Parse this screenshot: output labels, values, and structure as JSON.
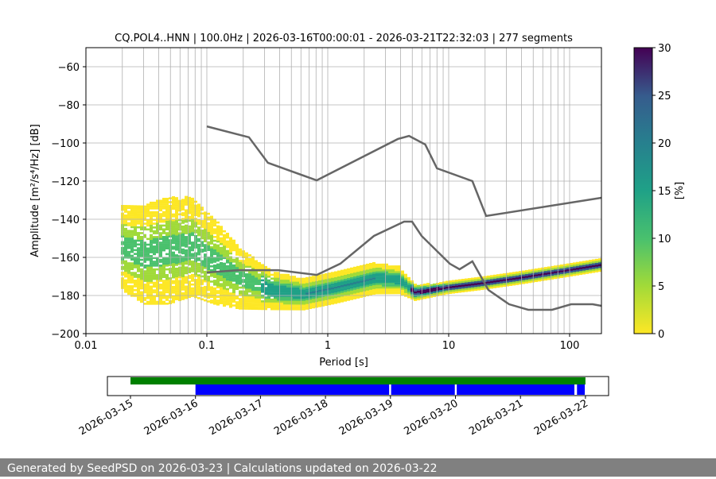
{
  "chart_data": {
    "type": "heatmap",
    "title": "CQ.POL4..HNN | 100.0Hz | 2026-03-16T00:00:01 - 2026-03-21T22:32:03 | 277 segments",
    "xlabel": "Period [s]",
    "ylabel": "Amplitude [m²/s⁴/Hz] [dB]",
    "xscale": "log",
    "xlim": [
      0.01,
      183
    ],
    "ylim": [
      -200,
      -50
    ],
    "xticks": [
      {
        "v": 0.01,
        "label": "0.01"
      },
      {
        "v": 0.1,
        "label": "0.1"
      },
      {
        "v": 1,
        "label": "1"
      },
      {
        "v": 10,
        "label": "10"
      },
      {
        "v": 100,
        "label": "100"
      }
    ],
    "yticks": [
      {
        "v": -60,
        "label": "−60"
      },
      {
        "v": -80,
        "label": "−80"
      },
      {
        "v": -100,
        "label": "−100"
      },
      {
        "v": -120,
        "label": "−120"
      },
      {
        "v": -140,
        "label": "−140"
      },
      {
        "v": -160,
        "label": "−160"
      },
      {
        "v": -180,
        "label": "−180"
      },
      {
        "v": -200,
        "label": "−200"
      }
    ],
    "grid": true,
    "colorbar": {
      "label": "[%]",
      "range": [
        0,
        30
      ],
      "ticks": [
        "0",
        "5",
        "10",
        "15",
        "20",
        "25",
        "30"
      ]
    },
    "noise_models": [
      {
        "name": "high",
        "points": [
          [
            0.1,
            -91.3
          ],
          [
            0.223,
            -97
          ],
          [
            0.32,
            -110.4
          ],
          [
            0.81,
            -119.6
          ],
          [
            3.8,
            -97.9
          ],
          [
            4.7,
            -96.3
          ],
          [
            6.4,
            -100.8
          ],
          [
            8,
            -113.3
          ],
          [
            15.7,
            -120
          ],
          [
            20.4,
            -138.3
          ],
          [
            183,
            -128.75
          ]
        ]
      },
      {
        "name": "low",
        "points": [
          [
            0.1,
            -167.9
          ],
          [
            0.183,
            -166.7
          ],
          [
            0.39,
            -166.7
          ],
          [
            0.81,
            -169.2
          ],
          [
            1.27,
            -163.3
          ],
          [
            2.41,
            -148.75
          ],
          [
            4.28,
            -141.25
          ],
          [
            4.98,
            -141.25
          ],
          [
            5.97,
            -148.75
          ],
          [
            10.2,
            -163.3
          ],
          [
            12.3,
            -166.25
          ],
          [
            15.7,
            -162.1
          ],
          [
            21.3,
            -177.1
          ],
          [
            31.6,
            -184.6
          ],
          [
            45.5,
            -187.5
          ],
          [
            71.6,
            -187.5
          ],
          [
            103,
            -184.6
          ],
          [
            155,
            -184.6
          ],
          [
            183,
            -185.4
          ]
        ]
      }
    ],
    "psd_mode": {
      "period": [
        0.0195,
        0.0298,
        0.0469,
        0.0738,
        0.116,
        0.183,
        0.336,
        0.616,
        1.13,
        2.41,
        3.8,
        5.14,
        9.4,
        17.3,
        36.8,
        78.5,
        183
      ],
      "db": [
        -155,
        -158.3,
        -156.25,
        -154.2,
        -162.5,
        -170.8,
        -177.1,
        -179.2,
        -175.8,
        -170.8,
        -171.7,
        -178.3,
        -175.8,
        -173.75,
        -170.8,
        -167.5,
        -163.75
      ],
      "spread_db": [
        22,
        26,
        28,
        26,
        22,
        16,
        10,
        8,
        8,
        8,
        7,
        4,
        3,
        3,
        3,
        3,
        3
      ]
    }
  },
  "timeline": {
    "dates": [
      "2026-03-15",
      "2026-03-16",
      "2026-03-17",
      "2026-03-18",
      "2026-03-19",
      "2026-03-20",
      "2026-03-21",
      "2026-03-22"
    ],
    "available": [
      [
        0,
        7
      ]
    ],
    "used": [
      [
        1,
        3.98
      ],
      [
        4.01,
        4.99
      ],
      [
        5.02,
        6.83
      ],
      [
        6.87,
        6.99
      ]
    ],
    "colors": {
      "available": "#008000",
      "used": "#0000ff"
    }
  },
  "footer": "Generated by SeedPSD on 2026-03-23 | Calculations updated on 2026-03-22"
}
